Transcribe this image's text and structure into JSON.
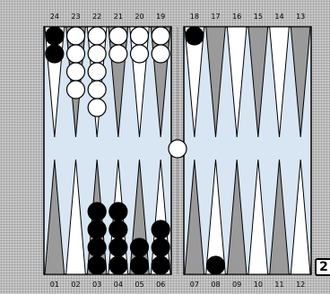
{
  "board": {
    "top_labels": [
      "24",
      "23",
      "22",
      "21",
      "20",
      "19",
      "18",
      "17",
      "16",
      "15",
      "14",
      "13"
    ],
    "bottom_labels": [
      "01",
      "02",
      "03",
      "04",
      "05",
      "06",
      "07",
      "08",
      "09",
      "10",
      "11",
      "12"
    ],
    "top_points": [
      {
        "label": "24",
        "white": 0,
        "black": 2
      },
      {
        "label": "23",
        "white": 4,
        "black": 0
      },
      {
        "label": "22",
        "white": 5,
        "black": 0
      },
      {
        "label": "21",
        "white": 2,
        "black": 0
      },
      {
        "label": "20",
        "white": 2,
        "black": 0
      },
      {
        "label": "19",
        "white": 2,
        "black": 0
      },
      {
        "label": "18",
        "white": 0,
        "black": 1
      },
      {
        "label": "17",
        "white": 0,
        "black": 0
      },
      {
        "label": "16",
        "white": 0,
        "black": 0
      },
      {
        "label": "15",
        "white": 0,
        "black": 0
      },
      {
        "label": "14",
        "white": 0,
        "black": 0
      },
      {
        "label": "13",
        "white": 0,
        "black": 0
      }
    ],
    "bottom_points": [
      {
        "label": "01",
        "white": 0,
        "black": 0
      },
      {
        "label": "02",
        "white": 0,
        "black": 0
      },
      {
        "label": "03",
        "white": 0,
        "black": 4
      },
      {
        "label": "04",
        "white": 0,
        "black": 4
      },
      {
        "label": "05",
        "white": 0,
        "black": 2
      },
      {
        "label": "06",
        "white": 0,
        "black": 3
      },
      {
        "label": "07",
        "white": 0,
        "black": 0
      },
      {
        "label": "08",
        "white": 0,
        "black": 1
      },
      {
        "label": "09",
        "white": 0,
        "black": 0
      },
      {
        "label": "10",
        "white": 0,
        "black": 0
      },
      {
        "label": "11",
        "white": 0,
        "black": 0
      },
      {
        "label": "12",
        "white": 0,
        "black": 0
      }
    ],
    "bar": {
      "white": 1,
      "black": 0
    },
    "colors": {
      "field": "#d8e6f3",
      "dark_point": "#9a9a9a",
      "light_point": "#ffffff",
      "checker_white": "#ffffff",
      "checker_black": "#000000"
    }
  },
  "cube": {
    "value": "2"
  }
}
